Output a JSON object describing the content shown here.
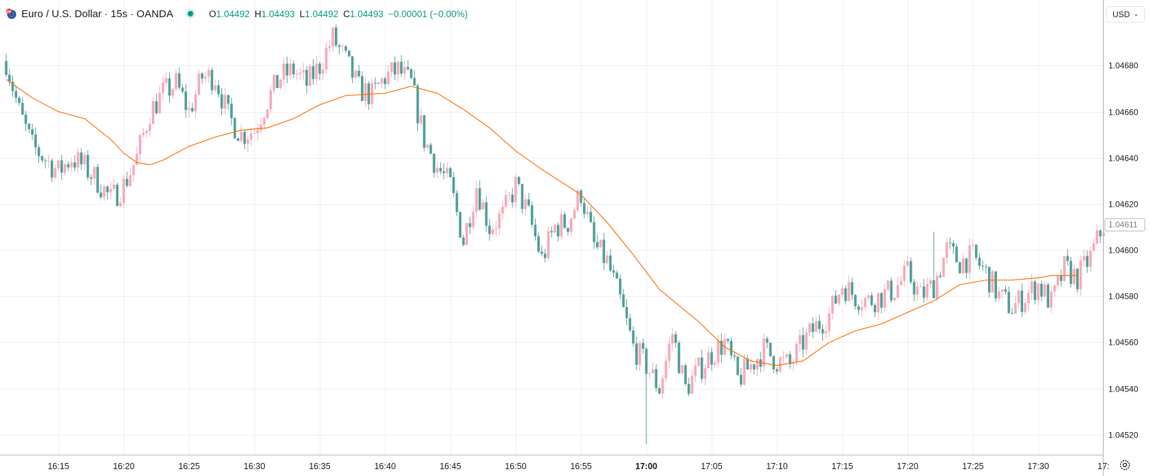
{
  "symbol": {
    "title": "Euro / U.S. Dollar · 15s · OANDA"
  },
  "ohlc": {
    "o_label": "O",
    "o": "1.04492",
    "h_label": "H",
    "h": "1.04493",
    "l_label": "L",
    "l": "1.04492",
    "c_label": "C",
    "c": "1.04493",
    "change": "−0.00001 (−0.00%)"
  },
  "currency_button": {
    "label": "USD",
    "chevron": "chevron-down-icon"
  },
  "settings_icon": "gear-icon",
  "colors": {
    "up": "#f7a9b8",
    "down": "#4f9e97",
    "ma_line": "#ff6d00",
    "grid": "#eaeef4",
    "axis_text": "#131722",
    "accent": "#089981"
  },
  "chart_data": {
    "type": "candlestick",
    "interval": "15s",
    "y_axis_ticks": [
      "1.04520",
      "1.04540",
      "1.04560",
      "1.04580",
      "1.04600",
      "1.04620",
      "1.04640",
      "1.04660",
      "1.04680"
    ],
    "ylim": [
      1.04514,
      1.04698
    ],
    "x_axis_ticks": [
      "16:15",
      "16:20",
      "16:25",
      "16:30",
      "16:35",
      "16:40",
      "16:45",
      "16:50",
      "16:55",
      "17:00",
      "17:05",
      "17:10",
      "17:15",
      "17:20",
      "17:25",
      "17:30",
      "17:"
    ],
    "x_tick_bold": "17:00",
    "last_price_label": "1.04611",
    "ma_series": [
      {
        "t": "16:11",
        "y": 1.04674
      },
      {
        "t": "16:13",
        "y": 1.04666
      },
      {
        "t": "16:15",
        "y": 1.0466
      },
      {
        "t": "16:17",
        "y": 1.04657
      },
      {
        "t": "16:19",
        "y": 1.04648
      },
      {
        "t": "16:20",
        "y": 1.04642
      },
      {
        "t": "16:21",
        "y": 1.04638
      },
      {
        "t": "16:22",
        "y": 1.04637
      },
      {
        "t": "16:23",
        "y": 1.04639
      },
      {
        "t": "16:25",
        "y": 1.04645
      },
      {
        "t": "16:27",
        "y": 1.04649
      },
      {
        "t": "16:29",
        "y": 1.04652
      },
      {
        "t": "16:31",
        "y": 1.04653
      },
      {
        "t": "16:33",
        "y": 1.04657
      },
      {
        "t": "16:35",
        "y": 1.04663
      },
      {
        "t": "16:37",
        "y": 1.04667
      },
      {
        "t": "16:40",
        "y": 1.04668
      },
      {
        "t": "16:42",
        "y": 1.04671
      },
      {
        "t": "16:44",
        "y": 1.04668
      },
      {
        "t": "16:46",
        "y": 1.04661
      },
      {
        "t": "16:48",
        "y": 1.04653
      },
      {
        "t": "16:50",
        "y": 1.04643
      },
      {
        "t": "16:52",
        "y": 1.04635
      },
      {
        "t": "16:55",
        "y": 1.04624
      },
      {
        "t": "16:57",
        "y": 1.04612
      },
      {
        "t": "16:59",
        "y": 1.04598
      },
      {
        "t": "17:01",
        "y": 1.04583
      },
      {
        "t": "17:04",
        "y": 1.04569
      },
      {
        "t": "17:06",
        "y": 1.04558
      },
      {
        "t": "17:08",
        "y": 1.04552
      },
      {
        "t": "17:10",
        "y": 1.0455
      },
      {
        "t": "17:12",
        "y": 1.04552
      },
      {
        "t": "17:14",
        "y": 1.0456
      },
      {
        "t": "17:16",
        "y": 1.04565
      },
      {
        "t": "17:18",
        "y": 1.04568
      },
      {
        "t": "17:20",
        "y": 1.04573
      },
      {
        "t": "17:22",
        "y": 1.04578
      },
      {
        "t": "17:24",
        "y": 1.04585
      },
      {
        "t": "17:26",
        "y": 1.04587
      },
      {
        "t": "17:28",
        "y": 1.04587
      },
      {
        "t": "17:30",
        "y": 1.04588
      },
      {
        "t": "17:31",
        "y": 1.04589
      },
      {
        "t": "17:33",
        "y": 1.04589
      }
    ],
    "price_path": [
      {
        "t": "16:11",
        "y": 1.04682
      },
      {
        "t": "16:12",
        "y": 1.0466
      },
      {
        "t": "16:13",
        "y": 1.04645
      },
      {
        "t": "16:15",
        "y": 1.04634
      },
      {
        "t": "16:16",
        "y": 1.0464
      },
      {
        "t": "16:17",
        "y": 1.04636
      },
      {
        "t": "16:18",
        "y": 1.0463
      },
      {
        "t": "16:19",
        "y": 1.04622
      },
      {
        "t": "16:20",
        "y": 1.04628
      },
      {
        "t": "16:21",
        "y": 1.0464
      },
      {
        "t": "16:22",
        "y": 1.0466
      },
      {
        "t": "16:23",
        "y": 1.04668
      },
      {
        "t": "16:24",
        "y": 1.04672
      },
      {
        "t": "16:25",
        "y": 1.0466
      },
      {
        "t": "16:26",
        "y": 1.04675
      },
      {
        "t": "16:27",
        "y": 1.04675
      },
      {
        "t": "16:28",
        "y": 1.04658
      },
      {
        "t": "16:29",
        "y": 1.0465
      },
      {
        "t": "16:30",
        "y": 1.04652
      },
      {
        "t": "16:31",
        "y": 1.04665
      },
      {
        "t": "16:32",
        "y": 1.04675
      },
      {
        "t": "16:33",
        "y": 1.04678
      },
      {
        "t": "16:34",
        "y": 1.04672
      },
      {
        "t": "16:35",
        "y": 1.0468
      },
      {
        "t": "16:36",
        "y": 1.04692
      },
      {
        "t": "16:37",
        "y": 1.04682
      },
      {
        "t": "16:38",
        "y": 1.0467
      },
      {
        "t": "16:39",
        "y": 1.04667
      },
      {
        "t": "16:40",
        "y": 1.04675
      },
      {
        "t": "16:41",
        "y": 1.04678
      },
      {
        "t": "16:42",
        "y": 1.04672
      },
      {
        "t": "16:43",
        "y": 1.04648
      },
      {
        "t": "16:44",
        "y": 1.04636
      },
      {
        "t": "16:45",
        "y": 1.04628
      },
      {
        "t": "16:46",
        "y": 1.04604
      },
      {
        "t": "16:47",
        "y": 1.04628
      },
      {
        "t": "16:48",
        "y": 1.0461
      },
      {
        "t": "16:49",
        "y": 1.04615
      },
      {
        "t": "16:50",
        "y": 1.04628
      },
      {
        "t": "16:51",
        "y": 1.04615
      },
      {
        "t": "16:52",
        "y": 1.04596
      },
      {
        "t": "16:53",
        "y": 1.0461
      },
      {
        "t": "16:54",
        "y": 1.04612
      },
      {
        "t": "16:55",
        "y": 1.04625
      },
      {
        "t": "16:56",
        "y": 1.04602
      },
      {
        "t": "16:57",
        "y": 1.04595
      },
      {
        "t": "16:58",
        "y": 1.04578
      },
      {
        "t": "16:59",
        "y": 1.04558
      },
      {
        "t": "17:00",
        "y": 1.0455
      },
      {
        "t": "17:01",
        "y": 1.0454
      },
      {
        "t": "17:02",
        "y": 1.04564
      },
      {
        "t": "17:03",
        "y": 1.0454
      },
      {
        "t": "17:04",
        "y": 1.04548
      },
      {
        "t": "17:05",
        "y": 1.04555
      },
      {
        "t": "17:06",
        "y": 1.0456
      },
      {
        "t": "17:07",
        "y": 1.04544
      },
      {
        "t": "17:08",
        "y": 1.0455
      },
      {
        "t": "17:09",
        "y": 1.04557
      },
      {
        "t": "17:10",
        "y": 1.04552
      },
      {
        "t": "17:11",
        "y": 1.0455
      },
      {
        "t": "17:12",
        "y": 1.0456
      },
      {
        "t": "17:13",
        "y": 1.04567
      },
      {
        "t": "17:14",
        "y": 1.04572
      },
      {
        "t": "17:15",
        "y": 1.04585
      },
      {
        "t": "17:16",
        "y": 1.0458
      },
      {
        "t": "17:17",
        "y": 1.04578
      },
      {
        "t": "17:18",
        "y": 1.0458
      },
      {
        "t": "17:19",
        "y": 1.04583
      },
      {
        "t": "17:20",
        "y": 1.0459
      },
      {
        "t": "17:21",
        "y": 1.0458
      },
      {
        "t": "17:22",
        "y": 1.04585
      },
      {
        "t": "17:23",
        "y": 1.046
      },
      {
        "t": "17:24",
        "y": 1.04595
      },
      {
        "t": "17:25",
        "y": 1.04597
      },
      {
        "t": "17:26",
        "y": 1.0459
      },
      {
        "t": "17:27",
        "y": 1.0458
      },
      {
        "t": "17:28",
        "y": 1.04575
      },
      {
        "t": "17:29",
        "y": 1.0458
      },
      {
        "t": "17:30",
        "y": 1.04585
      },
      {
        "t": "17:31",
        "y": 1.04577
      },
      {
        "t": "17:32",
        "y": 1.04592
      },
      {
        "t": "17:33",
        "y": 1.04588
      },
      {
        "t": "17:34",
        "y": 1.04597
      },
      {
        "t": "17:35",
        "y": 1.04611
      }
    ],
    "extremes": [
      {
        "t": "16:36",
        "high": 1.04697
      },
      {
        "t": "17:00",
        "low": 1.04516
      },
      {
        "t": "17:22",
        "high": 1.04608
      }
    ]
  }
}
